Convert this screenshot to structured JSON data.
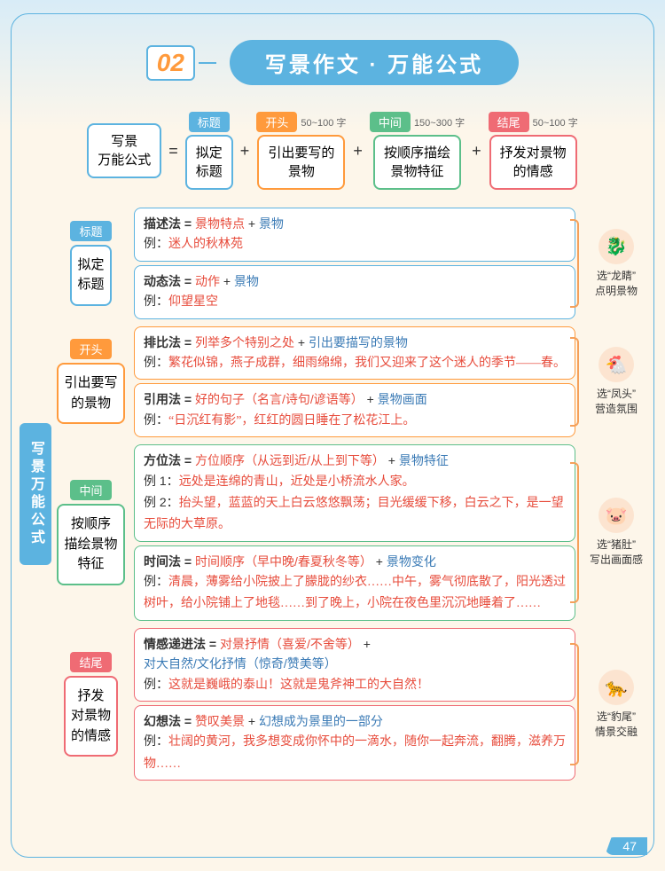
{
  "header": {
    "number": "02",
    "title": "写景作文 · 万能公式"
  },
  "colors": {
    "blue": "#5cb3e0",
    "orange": "#ff9a3c",
    "green": "#5cbf8a",
    "red": "#ef6b74",
    "text_red": "#e74c3c",
    "text_blue": "#3a7ab5"
  },
  "formula": {
    "left": {
      "line1": "写景",
      "line2": "万能公式"
    },
    "parts": [
      {
        "tag": "标题",
        "meta": "",
        "box": "拟定\n标题",
        "color": "#5cb3e0"
      },
      {
        "tag": "开头",
        "meta": "50~100 字",
        "box": "引出要写的\n景物",
        "color": "#ff9a3c"
      },
      {
        "tag": "中间",
        "meta": "150~300 字",
        "box": "按顺序描绘\n景物特征",
        "color": "#5cbf8a"
      },
      {
        "tag": "结尾",
        "meta": "50~100 字",
        "box": "抒发对景物\n的情感",
        "color": "#ef6b74"
      }
    ]
  },
  "spine_label": "写景万能公式",
  "sections": [
    {
      "tag": "标题",
      "tag_color": "#5cb3e0",
      "box": "拟定\n标题",
      "box_color": "#5cb3e0",
      "side_icon": "🐉",
      "side_text1": "选“龙睛”",
      "side_text2": "点明景物",
      "methods": [
        {
          "border": "#5cb3e0",
          "title_parts": [
            {
              "t": "描述法 = ",
              "c": "#333",
              "b": true
            },
            {
              "t": "景物特点",
              "c": "#e74c3c"
            },
            {
              "t": " + ",
              "c": "#333"
            },
            {
              "t": "景物",
              "c": "#3a7ab5"
            }
          ],
          "example": "迷人的秋林苑"
        },
        {
          "border": "#5cb3e0",
          "title_parts": [
            {
              "t": "动态法 = ",
              "c": "#333",
              "b": true
            },
            {
              "t": "动作",
              "c": "#e74c3c"
            },
            {
              "t": " + ",
              "c": "#333"
            },
            {
              "t": "景物",
              "c": "#3a7ab5"
            }
          ],
          "example": "仰望星空"
        }
      ]
    },
    {
      "tag": "开头",
      "tag_color": "#ff9a3c",
      "box": "引出要写\n的景物",
      "box_color": "#ff9a3c",
      "side_icon": "🐔",
      "side_text1": "选“凤头”",
      "side_text2": "营造氛围",
      "methods": [
        {
          "border": "#ff9a3c",
          "title_parts": [
            {
              "t": "排比法 = ",
              "c": "#333",
              "b": true
            },
            {
              "t": "列举多个特别之处",
              "c": "#e74c3c"
            },
            {
              "t": " + ",
              "c": "#333"
            },
            {
              "t": "引出要描写的景物",
              "c": "#3a7ab5"
            }
          ],
          "example": "繁花似锦，燕子成群，细雨绵绵，我们又迎来了这个迷人的季节——春。"
        },
        {
          "border": "#ff9a3c",
          "title_parts": [
            {
              "t": "引用法 = ",
              "c": "#333",
              "b": true
            },
            {
              "t": "好的句子（名言/诗句/谚语等）",
              "c": "#e74c3c"
            },
            {
              "t": " + ",
              "c": "#333"
            },
            {
              "t": "景物画面",
              "c": "#3a7ab5"
            }
          ],
          "example": "“日沉红有影”，红红的圆日睡在了松花江上。"
        }
      ]
    },
    {
      "tag": "中间",
      "tag_color": "#5cbf8a",
      "box": "按顺序\n描绘景物\n特征",
      "box_color": "#5cbf8a",
      "side_icon": "🐷",
      "side_text1": "选“猪肚”",
      "side_text2": "写出画面感",
      "methods": [
        {
          "border": "#5cbf8a",
          "title_parts": [
            {
              "t": "方位法 = ",
              "c": "#333",
              "b": true
            },
            {
              "t": "方位顺序（从远到近/从上到下等）",
              "c": "#e74c3c"
            },
            {
              "t": " + ",
              "c": "#333"
            },
            {
              "t": "景物特征",
              "c": "#3a7ab5"
            }
          ],
          "examples": [
            {
              "label": "例 1：",
              "text": "远处是连绵的青山，近处是小桥流水人家。"
            },
            {
              "label": "例 2：",
              "text": "抬头望，蓝蓝的天上白云悠悠飘荡；目光缓缓下移，白云之下，是一望无际的大草原。"
            }
          ]
        },
        {
          "border": "#5cbf8a",
          "title_parts": [
            {
              "t": "时间法 = ",
              "c": "#333",
              "b": true
            },
            {
              "t": "时间顺序（早中晚/春夏秋冬等）",
              "c": "#e74c3c"
            },
            {
              "t": " + ",
              "c": "#333"
            },
            {
              "t": "景物变化",
              "c": "#3a7ab5"
            }
          ],
          "example": "清晨，薄雾给小院披上了朦胧的纱衣……中午，雾气彻底散了，阳光透过树叶，给小院铺上了地毯……到了晚上，小院在夜色里沉沉地睡着了……"
        }
      ]
    },
    {
      "tag": "结尾",
      "tag_color": "#ef6b74",
      "box": "抒发\n对景物\n的情感",
      "box_color": "#ef6b74",
      "side_icon": "🐆",
      "side_text1": "选“豹尾”",
      "side_text2": "情景交融",
      "methods": [
        {
          "border": "#ef6b74",
          "title_parts": [
            {
              "t": "情感递进法 = ",
              "c": "#333",
              "b": true
            },
            {
              "t": "对景抒情（喜爱/不舍等）",
              "c": "#e74c3c"
            },
            {
              "t": " + ",
              "c": "#333"
            },
            {
              "t": "对大自然/文化抒情（惊奇/赞美等）",
              "c": "#3a7ab5"
            }
          ],
          "example": "这就是巍峨的泰山！这就是鬼斧神工的大自然！"
        },
        {
          "border": "#ef6b74",
          "title_parts": [
            {
              "t": "幻想法 = ",
              "c": "#333",
              "b": true
            },
            {
              "t": "赞叹美景",
              "c": "#e74c3c"
            },
            {
              "t": " + ",
              "c": "#333"
            },
            {
              "t": "幻想成为景里的一部分",
              "c": "#3a7ab5"
            }
          ],
          "example": "壮阔的黄河，我多想变成你怀中的一滴水，随你一起奔流，翻腾，滋养万物……"
        }
      ]
    }
  ],
  "page_number": "47"
}
